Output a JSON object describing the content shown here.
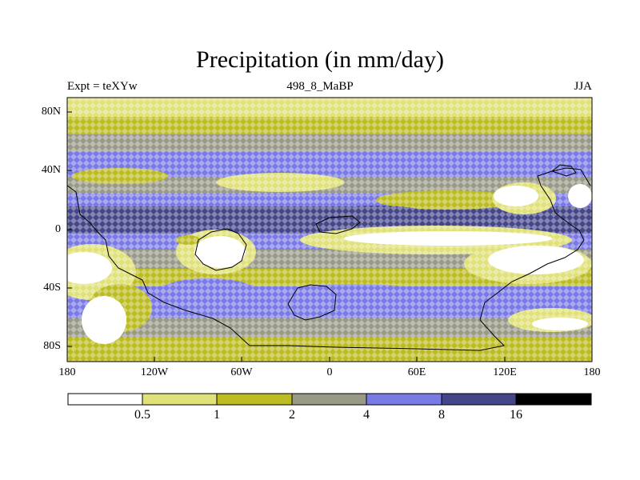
{
  "title": "Precipitation (in mm/day)",
  "left_label": "Expt = teXYw",
  "center_label": "498_8_MaBP",
  "right_label": "JJA",
  "lat_ticks": [
    "80N",
    "40N",
    "0",
    "40S",
    "80S"
  ],
  "lon_ticks": [
    "180",
    "120W",
    "60W",
    "0",
    "60E",
    "120E",
    "180"
  ],
  "colorbar": {
    "labels": [
      "0.5",
      "1",
      "2",
      "4",
      "8",
      "16"
    ],
    "colors": [
      "#ffffff",
      "#e1e17a",
      "#bcbc22",
      "#999988",
      "#7a7ae6",
      "#45458a",
      "#000000"
    ]
  },
  "chart_data": {
    "type": "heatmap",
    "title": "Precipitation (in mm/day)",
    "lon_range": [
      -180,
      180
    ],
    "lat_range": [
      -90,
      90
    ],
    "levels": [
      0.5,
      1,
      2,
      4,
      8,
      16
    ],
    "zonal_mean_levels_by_lat": [
      {
        "lat": 85,
        "mm_day": 0.8
      },
      {
        "lat": 75,
        "mm_day": 1.2
      },
      {
        "lat": 60,
        "mm_day": 2.5
      },
      {
        "lat": 45,
        "mm_day": 5
      },
      {
        "lat": 35,
        "mm_day": 3
      },
      {
        "lat": 20,
        "mm_day": 5
      },
      {
        "lat": 5,
        "mm_day": 10
      },
      {
        "lat": -5,
        "mm_day": 6
      },
      {
        "lat": -20,
        "mm_day": 3
      },
      {
        "lat": -35,
        "mm_day": 2
      },
      {
        "lat": -50,
        "mm_day": 5
      },
      {
        "lat": -65,
        "mm_day": 2.5
      },
      {
        "lat": -80,
        "mm_day": 1
      }
    ]
  }
}
